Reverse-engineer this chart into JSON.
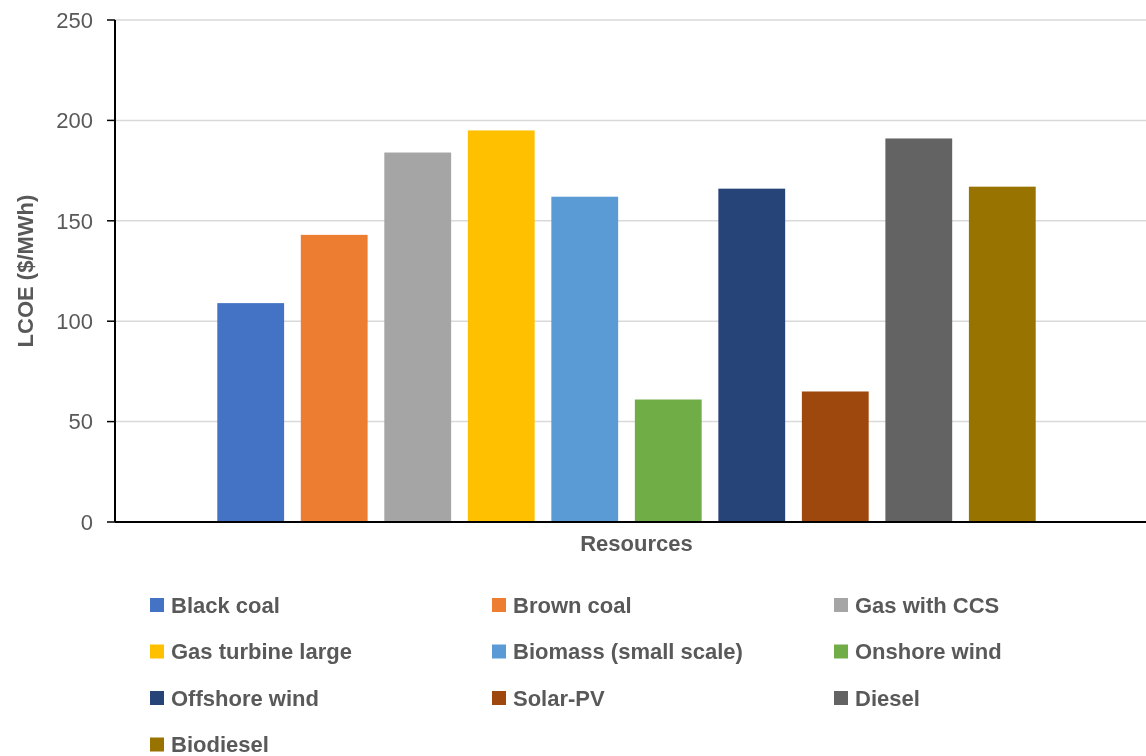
{
  "chart_data": {
    "type": "bar",
    "xlabel": "Resources",
    "ylabel": "LCOE ($/MWh)",
    "categories": [
      null
    ],
    "series": [
      {
        "name": "Black coal",
        "color": "#4472c4",
        "values": [
          109
        ]
      },
      {
        "name": "Brown coal",
        "color": "#ed7d31",
        "values": [
          143
        ]
      },
      {
        "name": "Gas with CCS",
        "color": "#a5a5a5",
        "values": [
          184
        ]
      },
      {
        "name": "Gas turbine large",
        "color": "#ffc000",
        "values": [
          195
        ]
      },
      {
        "name": "Biomass (small scale)",
        "color": "#5b9bd5",
        "values": [
          162
        ]
      },
      {
        "name": "Onshore wind",
        "color": "#70ad47",
        "values": [
          61
        ]
      },
      {
        "name": "Offshore wind",
        "color": "#264478",
        "values": [
          166
        ]
      },
      {
        "name": "Solar-PV",
        "color": "#9e480e",
        "values": [
          65
        ]
      },
      {
        "name": "Diesel",
        "color": "#636363",
        "values": [
          191
        ]
      },
      {
        "name": "Biodiesel",
        "color": "#997300",
        "values": [
          167
        ]
      }
    ],
    "ylim": [
      0,
      250
    ],
    "yticks": [
      0,
      50,
      100,
      150,
      200,
      250
    ],
    "grid": "y",
    "legend": "bottom"
  }
}
